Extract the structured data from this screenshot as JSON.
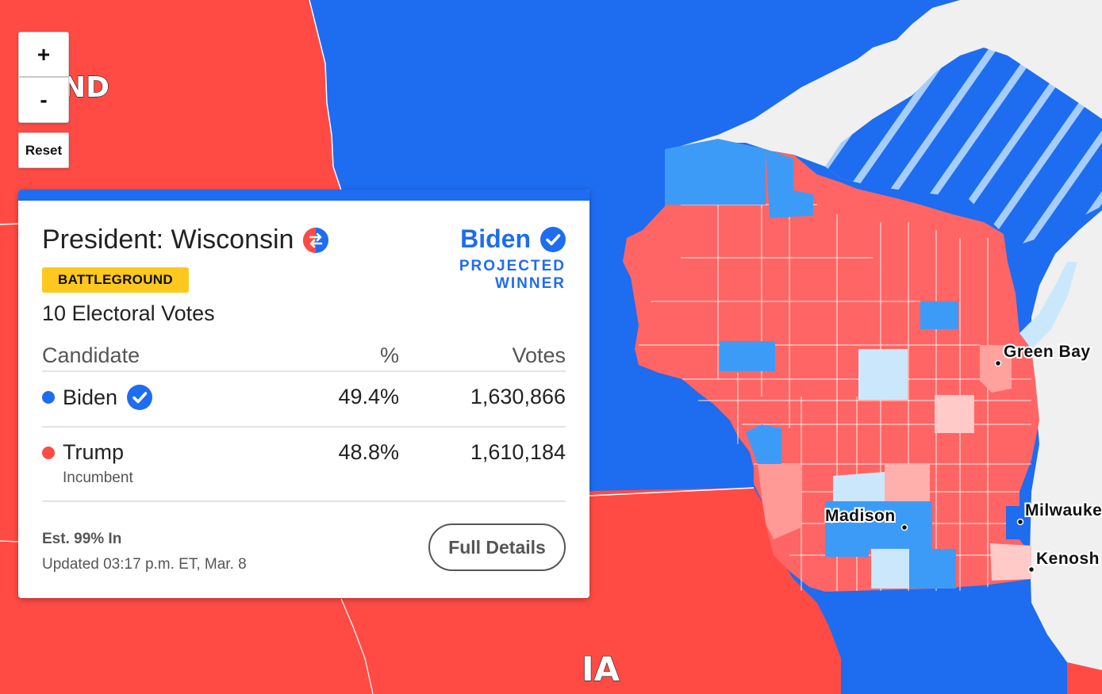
{
  "map": {
    "zoom_in_label": "+",
    "zoom_out_label": "-",
    "reset_label": "Reset",
    "state_labels": {
      "nd": "ND",
      "ia": "IA"
    },
    "cities": {
      "green_bay": "Green Bay",
      "madison": "Madison",
      "milwaukee": "Milwauke",
      "kenosha": "Kenosh"
    },
    "colors": {
      "dem": "#1e6cf0",
      "rep": "#ff4b44",
      "rep_county": "#ff6564",
      "dem_county": "#3d9bf8",
      "lake": "#f0f0f0"
    }
  },
  "card": {
    "title": "President: Wisconsin",
    "flip_icon": "flip-icon",
    "badge": "BATTLEGROUND",
    "electoral_votes": "10 Electoral Votes",
    "winner": {
      "name": "Biden",
      "label_line1": "PROJECTED",
      "label_line2": "WINNER"
    },
    "table": {
      "headers": {
        "candidate": "Candidate",
        "pct": "%",
        "votes": "Votes"
      },
      "rows": [
        {
          "name": "Biden",
          "pct": "49.4%",
          "votes": "1,630,866",
          "note": "",
          "color": "#1e6cf0"
        },
        {
          "name": "Trump",
          "pct": "48.8%",
          "votes": "1,610,184",
          "note": "Incumbent",
          "color": "#ff4b44"
        }
      ]
    },
    "est_in": "Est. 99% In",
    "updated": "Updated 03:17 p.m. ET, Mar. 8",
    "full_details": "Full Details"
  }
}
